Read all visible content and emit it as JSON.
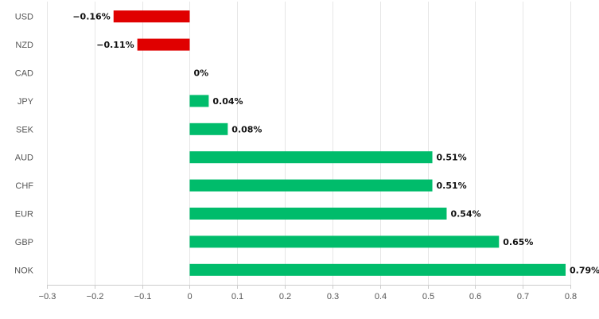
{
  "chart_data": {
    "type": "bar",
    "orientation": "horizontal",
    "title": "",
    "xlabel": "",
    "ylabel": "",
    "categories": [
      "USD",
      "NZD",
      "CAD",
      "JPY",
      "SEK",
      "AUD",
      "CHF",
      "EUR",
      "GBP",
      "NOK"
    ],
    "values": [
      -0.16,
      -0.11,
      0,
      0.04,
      0.08,
      0.51,
      0.51,
      0.54,
      0.65,
      0.79
    ],
    "value_labels": [
      "−0.16%",
      "−0.11%",
      "0%",
      "0.04%",
      "0.08%",
      "0.51%",
      "0.51%",
      "0.54%",
      "0.65%",
      "0.79%"
    ],
    "xlim": [
      -0.3,
      0.8
    ],
    "xticks": [
      -0.3,
      -0.2,
      -0.1,
      0,
      0.1,
      0.2,
      0.3,
      0.4,
      0.5,
      0.6,
      0.7,
      0.8
    ],
    "xtick_labels": [
      "−0.3",
      "−0.2",
      "−0.1",
      "0",
      "0.1",
      "0.2",
      "0.3",
      "0.4",
      "0.5",
      "0.6",
      "0.7",
      "0.8"
    ],
    "grid": true,
    "legend": "none",
    "colors": {
      "positive": "#00bc6b",
      "negative": "#e00000"
    }
  }
}
